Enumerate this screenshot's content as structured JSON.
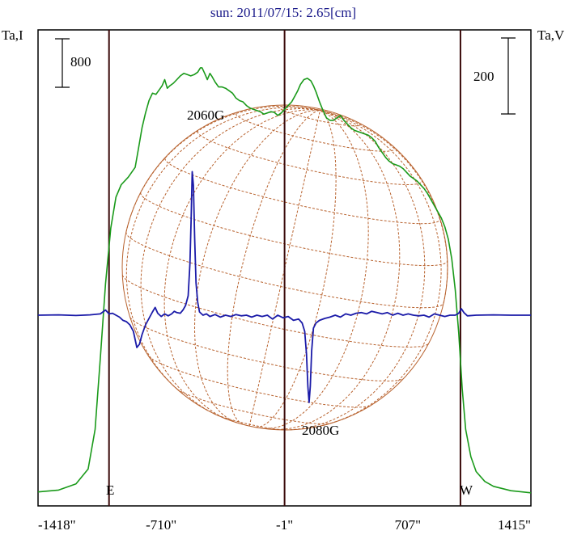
{
  "chart_data": {
    "type": "line",
    "title": "sun: 2011/07/15: 2.65[cm]",
    "left_axis_label": "Ta,I",
    "right_axis_label": "Ta,V",
    "scale_bar_left": "800",
    "scale_bar_right": "200",
    "x_ticks": [
      {
        "value": -1418,
        "label": "-1418\""
      },
      {
        "value": -710,
        "label": "-710\""
      },
      {
        "value": -1,
        "label": "-1\""
      },
      {
        "value": 707,
        "label": "707\""
      },
      {
        "value": 1415,
        "label": "1415\""
      }
    ],
    "xlim": [
      -1418,
      1415
    ],
    "limb_lines": [
      -1010,
      -1,
      1010
    ],
    "limb_labels": {
      "east": "E",
      "west": "W"
    },
    "annotations": [
      "2060G",
      "2080G"
    ],
    "series": [
      {
        "color": "#1a9a1a",
        "axis": "left",
        "points": [
          [
            -1418,
            15
          ],
          [
            -1300,
            30
          ],
          [
            -1200,
            80
          ],
          [
            -1130,
            200
          ],
          [
            -1090,
            520
          ],
          [
            -1060,
            1100
          ],
          [
            -1030,
            1700
          ],
          [
            -1000,
            2150
          ],
          [
            -970,
            2400
          ],
          [
            -940,
            2500
          ],
          [
            -900,
            2560
          ],
          [
            -860,
            2640
          ],
          [
            -840,
            2800
          ],
          [
            -820,
            2960
          ],
          [
            -800,
            3080
          ],
          [
            -780,
            3180
          ],
          [
            -760,
            3240
          ],
          [
            -740,
            3230
          ],
          [
            -725,
            3260
          ],
          [
            -705,
            3300
          ],
          [
            -690,
            3350
          ],
          [
            -675,
            3280
          ],
          [
            -660,
            3300
          ],
          [
            -640,
            3320
          ],
          [
            -620,
            3350
          ],
          [
            -600,
            3380
          ],
          [
            -580,
            3400
          ],
          [
            -560,
            3390
          ],
          [
            -540,
            3380
          ],
          [
            -520,
            3390
          ],
          [
            -500,
            3410
          ],
          [
            -485,
            3445
          ],
          [
            -475,
            3445
          ],
          [
            -460,
            3400
          ],
          [
            -445,
            3350
          ],
          [
            -430,
            3400
          ],
          [
            -420,
            3380
          ],
          [
            -400,
            3330
          ],
          [
            -380,
            3290
          ],
          [
            -360,
            3290
          ],
          [
            -340,
            3280
          ],
          [
            -320,
            3260
          ],
          [
            -300,
            3240
          ],
          [
            -280,
            3200
          ],
          [
            -260,
            3180
          ],
          [
            -240,
            3170
          ],
          [
            -220,
            3140
          ],
          [
            -200,
            3120
          ],
          [
            -180,
            3110
          ],
          [
            -160,
            3100
          ],
          [
            -140,
            3090
          ],
          [
            -120,
            3070
          ],
          [
            -100,
            3080
          ],
          [
            -80,
            3090
          ],
          [
            -60,
            3085
          ],
          [
            -40,
            3060
          ],
          [
            -20,
            3080
          ],
          [
            0,
            3110
          ],
          [
            20,
            3140
          ],
          [
            40,
            3170
          ],
          [
            60,
            3220
          ],
          [
            75,
            3260
          ],
          [
            90,
            3310
          ],
          [
            110,
            3350
          ],
          [
            130,
            3360
          ],
          [
            150,
            3340
          ],
          [
            165,
            3300
          ],
          [
            180,
            3250
          ],
          [
            200,
            3170
          ],
          [
            220,
            3100
          ],
          [
            240,
            3040
          ],
          [
            260,
            3020
          ],
          [
            280,
            3020
          ],
          [
            300,
            3040
          ],
          [
            320,
            3060
          ],
          [
            340,
            3020
          ],
          [
            360,
            2990
          ],
          [
            380,
            2960
          ],
          [
            400,
            2940
          ],
          [
            420,
            2930
          ],
          [
            440,
            2920
          ],
          [
            460,
            2910
          ],
          [
            480,
            2900
          ],
          [
            500,
            2880
          ],
          [
            520,
            2850
          ],
          [
            540,
            2800
          ],
          [
            560,
            2760
          ],
          [
            580,
            2720
          ],
          [
            600,
            2690
          ],
          [
            620,
            2670
          ],
          [
            640,
            2660
          ],
          [
            660,
            2650
          ],
          [
            680,
            2630
          ],
          [
            700,
            2600
          ],
          [
            720,
            2570
          ],
          [
            740,
            2550
          ],
          [
            760,
            2530
          ],
          [
            780,
            2500
          ],
          [
            800,
            2470
          ],
          [
            820,
            2430
          ],
          [
            840,
            2380
          ],
          [
            860,
            2330
          ],
          [
            880,
            2280
          ],
          [
            900,
            2230
          ],
          [
            920,
            2160
          ],
          [
            940,
            2060
          ],
          [
            960,
            1900
          ],
          [
            980,
            1650
          ],
          [
            1000,
            1300
          ],
          [
            1020,
            850
          ],
          [
            1040,
            520
          ],
          [
            1070,
            300
          ],
          [
            1100,
            180
          ],
          [
            1150,
            100
          ],
          [
            1200,
            60
          ],
          [
            1300,
            25
          ],
          [
            1415,
            8
          ]
        ]
      },
      {
        "color": "#1a1aa8",
        "axis": "right",
        "points": [
          [
            -1418,
            0
          ],
          [
            -1300,
            0.5
          ],
          [
            -1200,
            -0.5
          ],
          [
            -1120,
            0.5
          ],
          [
            -1060,
            2
          ],
          [
            -1030,
            8
          ],
          [
            -1010,
            2
          ],
          [
            -990,
            3
          ],
          [
            -970,
            0
          ],
          [
            -950,
            -3
          ],
          [
            -930,
            -8
          ],
          [
            -910,
            -10
          ],
          [
            -890,
            -15
          ],
          [
            -870,
            -25
          ],
          [
            -850,
            -50
          ],
          [
            -835,
            -45
          ],
          [
            -820,
            -30
          ],
          [
            -800,
            -15
          ],
          [
            -780,
            -5
          ],
          [
            -760,
            5
          ],
          [
            -745,
            12
          ],
          [
            -730,
            3
          ],
          [
            -710,
            -2
          ],
          [
            -690,
            2
          ],
          [
            -670,
            -1
          ],
          [
            -650,
            2
          ],
          [
            -635,
            6
          ],
          [
            -620,
            4
          ],
          [
            -600,
            3
          ],
          [
            -585,
            8
          ],
          [
            -570,
            15
          ],
          [
            -555,
            30
          ],
          [
            -545,
            80
          ],
          [
            -538,
            150
          ],
          [
            -532,
            222
          ],
          [
            -525,
            200
          ],
          [
            -518,
            120
          ],
          [
            -510,
            50
          ],
          [
            -500,
            20
          ],
          [
            -490,
            5
          ],
          [
            -470,
            0
          ],
          [
            -450,
            2
          ],
          [
            -430,
            -2
          ],
          [
            -400,
            1
          ],
          [
            -370,
            -3
          ],
          [
            -340,
            0
          ],
          [
            -310,
            -2
          ],
          [
            -280,
            1
          ],
          [
            -250,
            -1
          ],
          [
            -220,
            0
          ],
          [
            -190,
            -3
          ],
          [
            -160,
            0
          ],
          [
            -130,
            -2
          ],
          [
            -100,
            0
          ],
          [
            -70,
            -6
          ],
          [
            -40,
            0
          ],
          [
            -10,
            -4
          ],
          [
            20,
            -2
          ],
          [
            50,
            -8
          ],
          [
            80,
            -6
          ],
          [
            100,
            -12
          ],
          [
            115,
            -25
          ],
          [
            125,
            -60
          ],
          [
            133,
            -110
          ],
          [
            140,
            -135
          ],
          [
            147,
            -110
          ],
          [
            155,
            -55
          ],
          [
            165,
            -20
          ],
          [
            180,
            -12
          ],
          [
            200,
            -8
          ],
          [
            230,
            -5
          ],
          [
            260,
            -3
          ],
          [
            290,
            0
          ],
          [
            320,
            -3
          ],
          [
            350,
            2
          ],
          [
            380,
            0
          ],
          [
            410,
            3
          ],
          [
            440,
            4
          ],
          [
            470,
            2
          ],
          [
            500,
            6
          ],
          [
            530,
            4
          ],
          [
            560,
            2
          ],
          [
            590,
            4
          ],
          [
            620,
            0
          ],
          [
            650,
            3
          ],
          [
            680,
            0
          ],
          [
            710,
            2
          ],
          [
            740,
            0
          ],
          [
            770,
            -1
          ],
          [
            800,
            0
          ],
          [
            830,
            -3
          ],
          [
            860,
            2
          ],
          [
            890,
            0
          ],
          [
            920,
            -2
          ],
          [
            950,
            0
          ],
          [
            980,
            0
          ],
          [
            1000,
            3
          ],
          [
            1015,
            10
          ],
          [
            1030,
            4
          ],
          [
            1050,
            -1
          ],
          [
            1100,
            0
          ],
          [
            1200,
            0.5
          ],
          [
            1300,
            0
          ],
          [
            1415,
            0
          ]
        ]
      }
    ]
  },
  "colors": {
    "title": "#1a1a8a",
    "frame": "#000000",
    "limb_line": "#3a0a0a",
    "grid": "#b8622e",
    "intensity": "#1a9a1a",
    "polarization": "#1a1aa8"
  }
}
